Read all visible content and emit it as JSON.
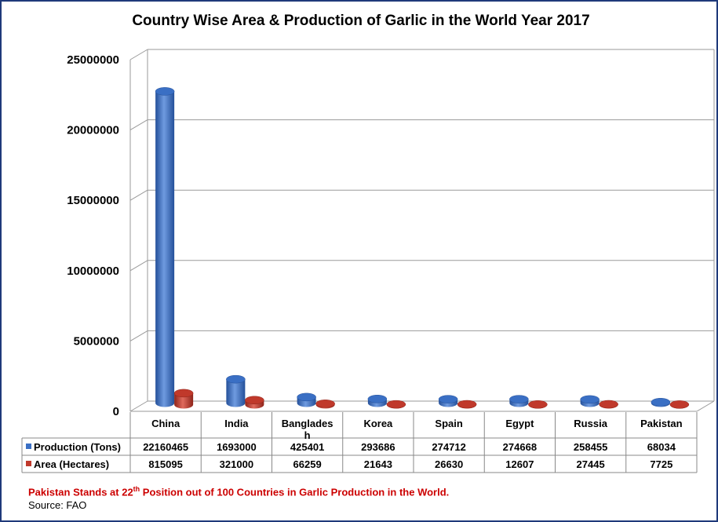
{
  "chart_data": {
    "type": "bar",
    "title": "Country Wise Area & Production of Garlic in the World Year 2017",
    "categories": [
      "China",
      "India",
      "Banglades h",
      "Korea",
      "Spain",
      "Egypt",
      "Russia",
      "Pakistan"
    ],
    "series": [
      {
        "name": "Production (Tons)",
        "values": [
          22160465,
          1693000,
          425401,
          293686,
          274712,
          274668,
          258455,
          68034
        ],
        "color": "#3a6fc4"
      },
      {
        "name": "Area (Hectares)",
        "values": [
          815095,
          321000,
          66259,
          21643,
          26630,
          12607,
          27445,
          7725
        ],
        "color": "#c0392b"
      }
    ],
    "yticks": [
      "0",
      "5000000",
      "10000000",
      "15000000",
      "20000000",
      "25000000"
    ],
    "ylim": [
      0,
      25000000
    ],
    "grid": true,
    "legend": "data table",
    "data_table": true
  },
  "note": {
    "prefix": "Pakistan Stands at 22",
    "sup": "th",
    "suffix": " Position out of 100 Countries in Garlic Production in the World."
  },
  "source": "Source: FAO"
}
